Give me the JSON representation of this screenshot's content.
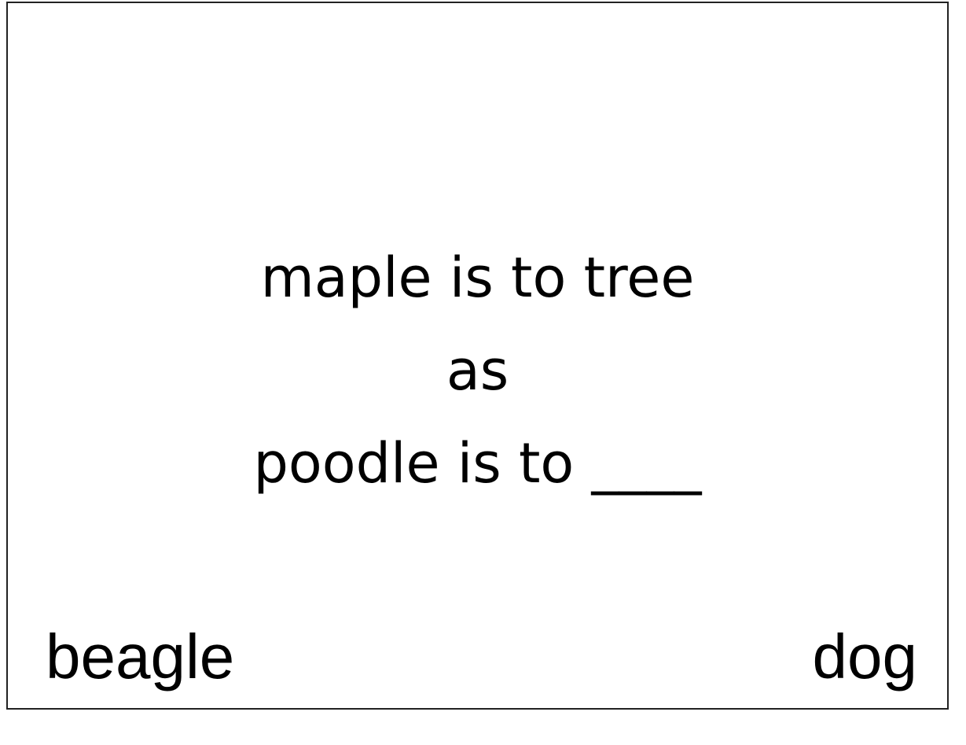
{
  "prompt": {
    "line1": "maple is to tree",
    "line2": "as",
    "line3": "poodle is to ____"
  },
  "options": {
    "left": "beagle",
    "right": "dog"
  }
}
